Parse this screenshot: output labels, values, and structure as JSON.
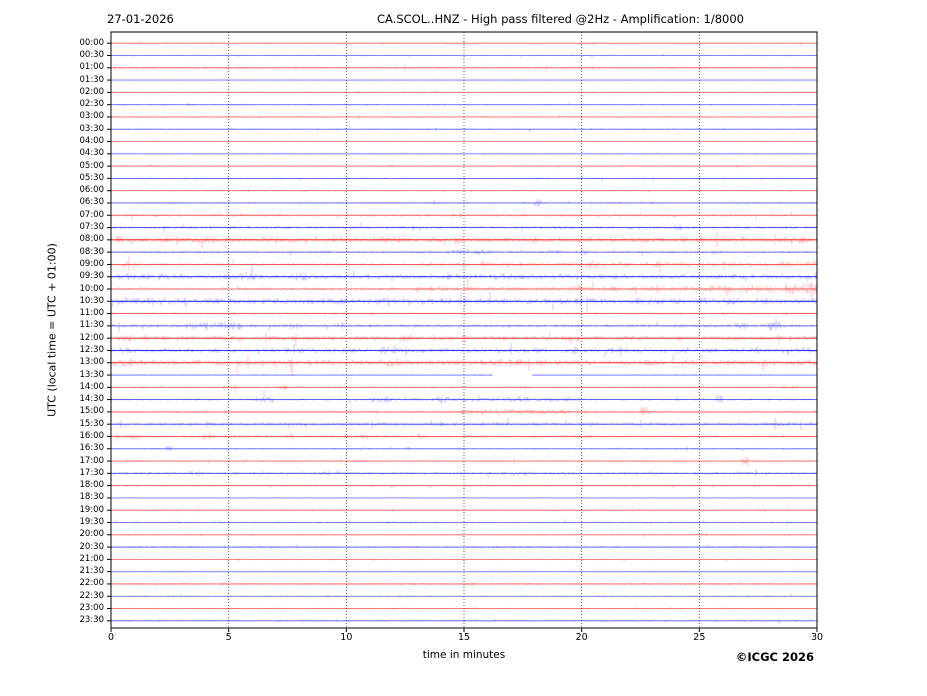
{
  "header": {
    "date": "27-01-2026",
    "title": "CA.SCOL..HNZ - High pass filtered @2Hz - Amplification: 1/8000"
  },
  "footer": {
    "copyright": "©ICGC 2026"
  },
  "chart_data": {
    "type": "heatmap",
    "subtype": "helicorder-seismogram",
    "title": "CA.SCOL..HNZ - High pass filtered @2Hz - Amplification: 1/8000",
    "date": "27-01-2026",
    "xlabel": "time in minutes",
    "ylabel": "UTC (local time = UTC + 01:00)",
    "xlim": [
      0,
      30
    ],
    "x_ticks": [
      0,
      5,
      10,
      15,
      20,
      25,
      30
    ],
    "grid_minutes": [
      5,
      10,
      15,
      20,
      25
    ],
    "grid": "vertical-dotted",
    "legend": "none",
    "colors": {
      "trace_red": "#ff0000",
      "trace_blue": "#0000ff",
      "grid": "#3c3c3c",
      "frame": "#000000",
      "background": "#ffffff"
    },
    "rows": [
      {
        "label": "00:00",
        "color": "red",
        "base": 0.5,
        "events": [],
        "gaps": []
      },
      {
        "label": "00:30",
        "color": "blue",
        "base": 0.5,
        "events": [],
        "gaps": []
      },
      {
        "label": "01:00",
        "color": "red",
        "base": 0.7,
        "events": [],
        "gaps": []
      },
      {
        "label": "01:30",
        "color": "blue",
        "base": 1.4,
        "band": true,
        "events": [],
        "gaps": []
      },
      {
        "label": "02:00",
        "color": "red",
        "base": 0.5,
        "events": [],
        "gaps": []
      },
      {
        "label": "02:30",
        "color": "blue",
        "base": 0.5,
        "events": [
          [
            3.2,
            3.5,
            1.4
          ]
        ],
        "gaps": []
      },
      {
        "label": "03:00",
        "color": "red",
        "base": 0.5,
        "events": [],
        "gaps": []
      },
      {
        "label": "03:30",
        "color": "blue",
        "base": 0.55,
        "events": [],
        "gaps": []
      },
      {
        "label": "04:00",
        "color": "red",
        "base": 1.0,
        "band": true,
        "events": [],
        "gaps": []
      },
      {
        "label": "04:30",
        "color": "blue",
        "base": 1.4,
        "band": true,
        "events": [],
        "gaps": []
      },
      {
        "label": "05:00",
        "color": "red",
        "base": 0.5,
        "events": [
          [
            1.6,
            1.9,
            1.2
          ],
          [
            6.4,
            6.7,
            1.0
          ],
          [
            11.8,
            12.1,
            1.0
          ]
        ],
        "gaps": []
      },
      {
        "label": "05:30",
        "color": "blue",
        "base": 0.6,
        "events": [],
        "gaps": []
      },
      {
        "label": "06:00",
        "color": "red",
        "base": 0.5,
        "events": [],
        "gaps": []
      },
      {
        "label": "06:30",
        "color": "blue",
        "base": 0.6,
        "events": [
          [
            18.0,
            18.3,
            3.0
          ]
        ],
        "gaps": []
      },
      {
        "label": "07:00",
        "color": "red",
        "base": 1.1,
        "events": [
          [
            14.4,
            15.0,
            1.6
          ],
          [
            23.4,
            24.0,
            1.6
          ]
        ],
        "gaps": []
      },
      {
        "label": "07:30",
        "color": "blue",
        "base": 1.1,
        "events": [
          [
            3.2,
            3.7,
            1.5
          ],
          [
            19.0,
            19.4,
            1.5
          ],
          [
            23.8,
            24.3,
            2.2
          ]
        ],
        "gaps": []
      },
      {
        "label": "08:00",
        "color": "red",
        "base": 2.0,
        "events": [
          [
            0.2,
            1.0,
            3.2
          ],
          [
            2.0,
            2.6,
            3.0
          ],
          [
            3.5,
            4.5,
            3.0
          ],
          [
            6.8,
            7.3,
            2.8
          ],
          [
            12.0,
            12.5,
            2.6
          ],
          [
            14.6,
            15.2,
            2.6
          ],
          [
            17.6,
            18.1,
            2.5
          ],
          [
            21.2,
            21.7,
            2.5
          ],
          [
            25.8,
            26.4,
            2.5
          ],
          [
            28.8,
            29.6,
            2.8
          ]
        ],
        "gaps": []
      },
      {
        "label": "08:30",
        "color": "blue",
        "base": 0.9,
        "events": [
          [
            14.2,
            16.2,
            1.8
          ],
          [
            18.6,
            19.2,
            2.0
          ],
          [
            20.0,
            20.3,
            2.2
          ],
          [
            25.5,
            26.0,
            1.5
          ]
        ],
        "gaps": []
      },
      {
        "label": "09:00",
        "color": "red",
        "base": 1.0,
        "base2": [
          13,
          1.6
        ],
        "events": [
          [
            0.4,
            1.2,
            2.2
          ],
          [
            20.3,
            20.8,
            3.0
          ],
          [
            23.0,
            23.5,
            2.2
          ],
          [
            26.2,
            26.8,
            2.2
          ],
          [
            28.4,
            29.2,
            2.0
          ]
        ],
        "gaps": []
      },
      {
        "label": "09:30",
        "color": "blue",
        "base": 1.7,
        "events": [
          [
            0.2,
            2.5,
            2.2
          ],
          [
            5.5,
            6.1,
            3.2
          ],
          [
            7.8,
            8.3,
            2.6
          ],
          [
            16.3,
            17.2,
            2.2
          ]
        ],
        "gaps": []
      },
      {
        "label": "10:00",
        "color": "red",
        "base": 1.0,
        "base2": [
          13,
          1.8
        ],
        "events": [
          [
            19.4,
            20.0,
            2.5
          ],
          [
            24.0,
            28.5,
            2.4
          ],
          [
            28.6,
            30,
            4.4
          ]
        ],
        "gaps": []
      },
      {
        "label": "10:30",
        "color": "blue",
        "base": 2.0,
        "events": [
          [
            0.2,
            2.3,
            2.9
          ],
          [
            11.3,
            11.9,
            2.8
          ],
          [
            20.5,
            21.0,
            2.5
          ],
          [
            26.2,
            26.7,
            2.6
          ]
        ],
        "gaps": []
      },
      {
        "label": "11:00",
        "color": "red",
        "base": 0.8,
        "events": [],
        "gaps": []
      },
      {
        "label": "11:30",
        "color": "blue",
        "base": 1.1,
        "events": [
          [
            3.3,
            5.6,
            2.7
          ],
          [
            7.6,
            8.1,
            2.5
          ],
          [
            9.4,
            9.9,
            2.5
          ],
          [
            26.5,
            27.0,
            2.5
          ],
          [
            27.9,
            28.5,
            2.9
          ]
        ],
        "gaps": []
      },
      {
        "label": "12:00",
        "color": "red",
        "base": 1.6,
        "events": [
          [
            0.3,
            0.9,
            2.2
          ],
          [
            12.2,
            12.8,
            2.4
          ],
          [
            19.4,
            19.9,
            2.2
          ]
        ],
        "gaps": []
      },
      {
        "label": "12:30",
        "color": "blue",
        "base": 1.7,
        "events": [
          [
            0.3,
            0.9,
            2.5
          ],
          [
            11.5,
            12.1,
            3.0
          ],
          [
            24.0,
            24.5,
            2.3
          ]
        ],
        "gaps": []
      },
      {
        "label": "13:00",
        "color": "red",
        "base": 2.0,
        "events": [
          [
            0.2,
            0.9,
            3.6
          ],
          [
            7.3,
            7.9,
            2.9
          ],
          [
            11.7,
            12.3,
            2.9
          ],
          [
            16.5,
            17.5,
            2.7
          ],
          [
            27.5,
            28.0,
            2.6
          ]
        ],
        "gaps": []
      },
      {
        "label": "13:30",
        "color": "blue",
        "base": 0.45,
        "events": [],
        "gaps": [
          [
            16.2,
            17.9
          ]
        ]
      },
      {
        "label": "14:00",
        "color": "red",
        "base": 0.7,
        "events": [
          [
            5.1,
            5.4,
            1.6
          ],
          [
            7.2,
            7.5,
            2.6
          ],
          [
            17.4,
            17.7,
            1.6
          ],
          [
            28.9,
            29.2,
            1.4
          ]
        ],
        "gaps": []
      },
      {
        "label": "14:30",
        "color": "blue",
        "base": 0.8,
        "events": [
          [
            6.2,
            6.9,
            2.2
          ],
          [
            11.0,
            12.3,
            1.8
          ],
          [
            12.8,
            20.0,
            1.6
          ],
          [
            13.8,
            14.4,
            2.6
          ],
          [
            17.2,
            17.7,
            2.4
          ],
          [
            25.6,
            26.0,
            2.7
          ]
        ],
        "gaps": []
      },
      {
        "label": "15:00",
        "color": "red",
        "base": 0.8,
        "events": [
          [
            14.8,
            19.5,
            1.9
          ],
          [
            22.5,
            22.9,
            3.6
          ]
        ],
        "gaps": []
      },
      {
        "label": "15:30",
        "color": "blue",
        "base": 1.2,
        "events": [
          [
            27.4,
            29.4,
            1.6
          ]
        ],
        "gaps": []
      },
      {
        "label": "16:00",
        "color": "red",
        "base": 1.0,
        "base2": [
          20.5,
          0.7
        ],
        "events": [
          [
            0.8,
            1.3,
            2.3
          ],
          [
            3.9,
            4.4,
            2.3
          ],
          [
            7.4,
            7.8,
            2.0
          ],
          [
            10.4,
            10.9,
            1.9
          ],
          [
            13.0,
            13.5,
            1.8
          ]
        ],
        "gaps": []
      },
      {
        "label": "16:30",
        "color": "blue",
        "base": 0.55,
        "events": [
          [
            2.3,
            2.6,
            1.9
          ],
          [
            12.5,
            12.8,
            1.3
          ]
        ],
        "gaps": []
      },
      {
        "label": "17:00",
        "color": "red",
        "base": 0.55,
        "events": [
          [
            26.8,
            27.1,
            2.9
          ]
        ],
        "gaps": []
      },
      {
        "label": "17:30",
        "color": "blue",
        "base": 1.0,
        "events": [
          [
            3.3,
            3.8,
            2.0
          ],
          [
            9.0,
            9.3,
            1.7
          ],
          [
            10.7,
            11.0,
            1.7
          ]
        ],
        "gaps": []
      },
      {
        "label": "18:00",
        "color": "red",
        "base": 0.75,
        "events": [],
        "gaps": []
      },
      {
        "label": "18:30",
        "color": "blue",
        "base": 1.0,
        "band": true,
        "events": [],
        "gaps": []
      },
      {
        "label": "19:00",
        "color": "red",
        "base": 0.55,
        "events": [],
        "gaps": []
      },
      {
        "label": "19:30",
        "color": "blue",
        "base": 0.65,
        "events": [
          [
            11.4,
            13.0,
            1.2
          ]
        ],
        "gaps": []
      },
      {
        "label": "20:00",
        "color": "red",
        "base": 0.55,
        "events": [
          [
            10.2,
            10.5,
            1.0
          ]
        ],
        "gaps": []
      },
      {
        "label": "20:30",
        "color": "blue",
        "base": 0.75,
        "events": [],
        "gaps": []
      },
      {
        "label": "21:00",
        "color": "red",
        "base": 0.55,
        "events": [],
        "gaps": []
      },
      {
        "label": "21:30",
        "color": "blue",
        "base": 1.4,
        "band": true,
        "events": [],
        "gaps": []
      },
      {
        "label": "22:00",
        "color": "red",
        "base": 0.7,
        "events": [
          [
            4.6,
            4.9,
            1.8
          ],
          [
            15.0,
            15.4,
            1.3
          ]
        ],
        "gaps": []
      },
      {
        "label": "22:30",
        "color": "blue",
        "base": 0.55,
        "events": [],
        "gaps": []
      },
      {
        "label": "23:00",
        "color": "red",
        "base": 0.5,
        "events": [],
        "gaps": []
      },
      {
        "label": "23:30",
        "color": "blue",
        "base": 0.6,
        "events": [],
        "gaps": []
      }
    ]
  }
}
